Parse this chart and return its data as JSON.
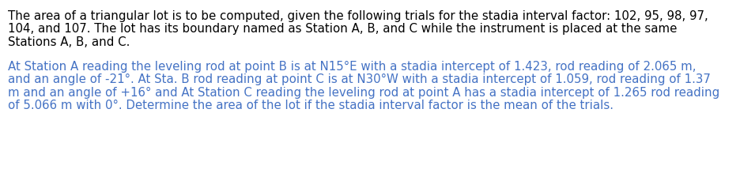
{
  "bg_color": "#ffffff",
  "text_color": "#000000",
  "highlight_color": "#4472C4",
  "font_size": 10.8,
  "p1_line1": "The area of a triangular lot is to be computed, given the following trials for the stadia interval factor: 102, 95, 98, 97,",
  "p1_line2": "104, and 107. The lot has its boundary named as Station A, B, and C while the instrument is placed at the same",
  "p1_line3": "Stations A, B, and C.",
  "p2_line1": "At Station A reading the leveling rod at point B is at N15°E with a stadia intercept of 1.423, rod reading of 2.065 m,",
  "p2_line2": "and an angle of -21°. At Sta. B rod reading at point C is at N30°W with a stadia intercept of 1.059, rod reading of 1.37",
  "p2_line3": "m and an angle of +16° and At Station C reading the leveling rod at point A has a stadia intercept of 1.265 rod reading",
  "p2_line4": "of 5.066 m with 0°. Determine the area of the lot if the stadia interval factor is the mean of the trials."
}
